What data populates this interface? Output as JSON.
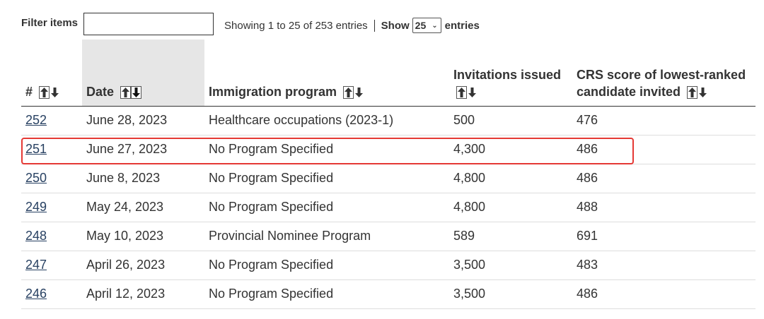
{
  "controls": {
    "filter_label": "Filter items",
    "filter_value": "",
    "info": "Showing 1 to 25 of 253 entries",
    "show_label": "Show",
    "page_length": "25",
    "entries_label": "entries"
  },
  "table": {
    "columns": [
      {
        "label": "#"
      },
      {
        "label": "Date"
      },
      {
        "label": "Immigration program"
      },
      {
        "label": "Invitations issued"
      },
      {
        "label": "CRS score of lowest-ranked candidate invited"
      }
    ],
    "rows": [
      {
        "num": "252",
        "date": "June 28, 2023",
        "program": "Healthcare occupations (2023-1)",
        "invitations": "500",
        "crs": "476"
      },
      {
        "num": "251",
        "date": "June 27, 2023",
        "program": "No Program Specified",
        "invitations": "4,300",
        "crs": "486"
      },
      {
        "num": "250",
        "date": "June 8, 2023",
        "program": "No Program Specified",
        "invitations": "4,800",
        "crs": "486"
      },
      {
        "num": "249",
        "date": "May 24, 2023",
        "program": "No Program Specified",
        "invitations": "4,800",
        "crs": "488"
      },
      {
        "num": "248",
        "date": "May 10, 2023",
        "program": "Provincial Nominee Program",
        "invitations": "589",
        "crs": "691"
      },
      {
        "num": "247",
        "date": "April 26, 2023",
        "program": "No Program Specified",
        "invitations": "3,500",
        "crs": "483"
      },
      {
        "num": "246",
        "date": "April 12, 2023",
        "program": "No Program Specified",
        "invitations": "3,500",
        "crs": "486"
      }
    ],
    "sorted_column": "Date",
    "sort_direction": "descending",
    "highlighted_row": "251"
  },
  "colors": {
    "link": "#284162",
    "text": "#333333",
    "sorted_header_bg": "#e6e6e6",
    "highlight_border": "#e53935"
  }
}
